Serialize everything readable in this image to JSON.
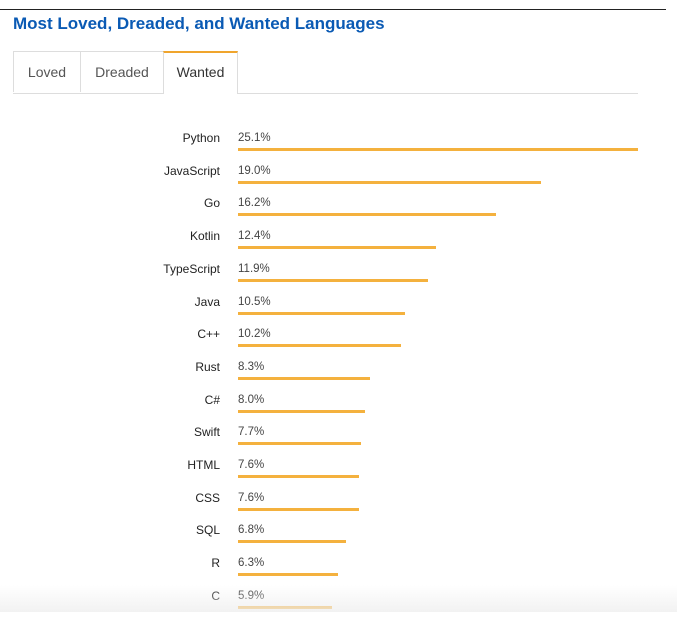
{
  "page": {
    "title": "Most Loved, Dreaded, and Wanted Languages"
  },
  "tabs": [
    {
      "label": "Loved",
      "active": false
    },
    {
      "label": "Dreaded",
      "active": false
    },
    {
      "label": "Wanted",
      "active": true
    }
  ],
  "colors": {
    "title": "#0a5ab4",
    "bar": "#f4b13e",
    "active_tab_accent": "#f0a52d"
  },
  "chart_data": {
    "type": "bar",
    "orientation": "horizontal",
    "title": "",
    "xlabel": "",
    "ylabel": "",
    "unit": "%",
    "categories": [
      "Python",
      "JavaScript",
      "Go",
      "Kotlin",
      "TypeScript",
      "Java",
      "C++",
      "Rust",
      "C#",
      "Swift",
      "HTML",
      "CSS",
      "SQL",
      "R",
      "C"
    ],
    "values": [
      25.1,
      19.0,
      16.2,
      12.4,
      11.9,
      10.5,
      10.2,
      8.3,
      8.0,
      7.7,
      7.6,
      7.6,
      6.8,
      6.3,
      5.9
    ],
    "labels": [
      "25.1%",
      "19.0%",
      "16.2%",
      "12.4%",
      "11.9%",
      "10.5%",
      "10.2%",
      "8.3%",
      "8.0%",
      "7.7%",
      "7.6%",
      "7.6%",
      "6.8%",
      "6.3%",
      "5.9%"
    ],
    "xlim": [
      0,
      25.1
    ],
    "grid": false,
    "legend": "none"
  }
}
